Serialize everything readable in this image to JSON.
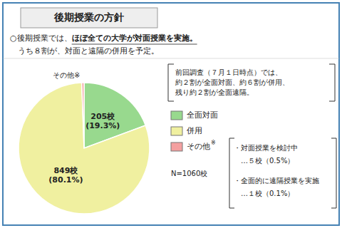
{
  "chart_data": {
    "type": "pie",
    "title": "後期授業の方針",
    "categories": [
      "全面対面",
      "併用",
      "その他"
    ],
    "values": [
      205,
      849,
      6
    ],
    "value_labels": [
      "205校\n(19.3%)",
      "849校\n(80.1%)",
      "その他※"
    ],
    "colors": [
      "#98D98E",
      "#F0F0A0",
      "#F4A0A0"
    ],
    "data_labels": true,
    "legend": "right",
    "annotations": [
      "○後期授業では、",
      "ほぼ全ての大学が対面授業を実施。",
      "　うち８割が、対面と遠隔の併用を予定。",
      "前回調査（７月１日時点）では、",
      "約２割が全面対面、約６割が併用、",
      "残り約２割が全面遠隔。",
      "※",
      "N=1060校",
      "・対面授業を検討中",
      "　…５校（0.5%）",
      "・全面的に遠隔授業を実施",
      "　…１校（0.1%）"
    ]
  }
}
